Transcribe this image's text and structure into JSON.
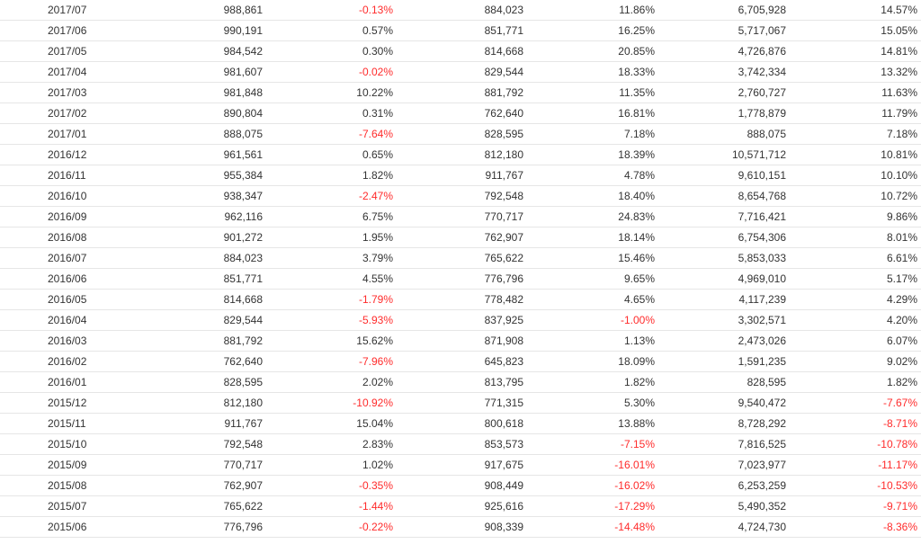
{
  "colors": {
    "text": "#333333",
    "negative": "#ff2b2b",
    "row_border": "#e6e6e6"
  },
  "rows": [
    [
      "2017/07",
      "988,861",
      "-0.13%",
      "884,023",
      "11.86%",
      "6,705,928",
      "14.57%"
    ],
    [
      "2017/06",
      "990,191",
      "0.57%",
      "851,771",
      "16.25%",
      "5,717,067",
      "15.05%"
    ],
    [
      "2017/05",
      "984,542",
      "0.30%",
      "814,668",
      "20.85%",
      "4,726,876",
      "14.81%"
    ],
    [
      "2017/04",
      "981,607",
      "-0.02%",
      "829,544",
      "18.33%",
      "3,742,334",
      "13.32%"
    ],
    [
      "2017/03",
      "981,848",
      "10.22%",
      "881,792",
      "11.35%",
      "2,760,727",
      "11.63%"
    ],
    [
      "2017/02",
      "890,804",
      "0.31%",
      "762,640",
      "16.81%",
      "1,778,879",
      "11.79%"
    ],
    [
      "2017/01",
      "888,075",
      "-7.64%",
      "828,595",
      "7.18%",
      "888,075",
      "7.18%"
    ],
    [
      "2016/12",
      "961,561",
      "0.65%",
      "812,180",
      "18.39%",
      "10,571,712",
      "10.81%"
    ],
    [
      "2016/11",
      "955,384",
      "1.82%",
      "911,767",
      "4.78%",
      "9,610,151",
      "10.10%"
    ],
    [
      "2016/10",
      "938,347",
      "-2.47%",
      "792,548",
      "18.40%",
      "8,654,768",
      "10.72%"
    ],
    [
      "2016/09",
      "962,116",
      "6.75%",
      "770,717",
      "24.83%",
      "7,716,421",
      "9.86%"
    ],
    [
      "2016/08",
      "901,272",
      "1.95%",
      "762,907",
      "18.14%",
      "6,754,306",
      "8.01%"
    ],
    [
      "2016/07",
      "884,023",
      "3.79%",
      "765,622",
      "15.46%",
      "5,853,033",
      "6.61%"
    ],
    [
      "2016/06",
      "851,771",
      "4.55%",
      "776,796",
      "9.65%",
      "4,969,010",
      "5.17%"
    ],
    [
      "2016/05",
      "814,668",
      "-1.79%",
      "778,482",
      "4.65%",
      "4,117,239",
      "4.29%"
    ],
    [
      "2016/04",
      "829,544",
      "-5.93%",
      "837,925",
      "-1.00%",
      "3,302,571",
      "4.20%"
    ],
    [
      "2016/03",
      "881,792",
      "15.62%",
      "871,908",
      "1.13%",
      "2,473,026",
      "6.07%"
    ],
    [
      "2016/02",
      "762,640",
      "-7.96%",
      "645,823",
      "18.09%",
      "1,591,235",
      "9.02%"
    ],
    [
      "2016/01",
      "828,595",
      "2.02%",
      "813,795",
      "1.82%",
      "828,595",
      "1.82%"
    ],
    [
      "2015/12",
      "812,180",
      "-10.92%",
      "771,315",
      "5.30%",
      "9,540,472",
      "-7.67%"
    ],
    [
      "2015/11",
      "911,767",
      "15.04%",
      "800,618",
      "13.88%",
      "8,728,292",
      "-8.71%"
    ],
    [
      "2015/10",
      "792,548",
      "2.83%",
      "853,573",
      "-7.15%",
      "7,816,525",
      "-10.78%"
    ],
    [
      "2015/09",
      "770,717",
      "1.02%",
      "917,675",
      "-16.01%",
      "7,023,977",
      "-11.17%"
    ],
    [
      "2015/08",
      "762,907",
      "-0.35%",
      "908,449",
      "-16.02%",
      "6,253,259",
      "-10.53%"
    ],
    [
      "2015/07",
      "765,622",
      "-1.44%",
      "925,616",
      "-17.29%",
      "5,490,352",
      "-9.71%"
    ],
    [
      "2015/06",
      "776,796",
      "-0.22%",
      "908,339",
      "-14.48%",
      "4,724,730",
      "-8.36%"
    ]
  ]
}
